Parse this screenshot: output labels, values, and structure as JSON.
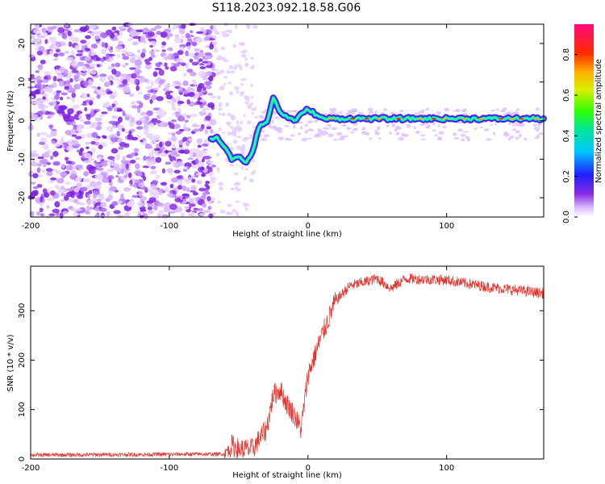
{
  "title": "S118.2023.092.18.58.G06",
  "chart_data": [
    {
      "type": "heatmap",
      "xlabel": "Height of straight line (km)",
      "ylabel": "Frequency (Hz)",
      "xlim": [
        -200,
        170
      ],
      "ylim": [
        -25,
        25
      ],
      "x_ticks": [
        -200,
        -100,
        0,
        100
      ],
      "y_ticks": [
        -20,
        -10,
        0,
        10,
        20
      ],
      "colorbar": {
        "label": "Normalized spectral amplitude",
        "range": [
          0,
          0.95
        ],
        "ticks": [
          0.0,
          0.2,
          0.4,
          0.6,
          0.8
        ],
        "colormap": "rainbow (white-purple-blue-cyan-green-yellow-red-pink)"
      },
      "ridge": [
        {
          "x": -70,
          "y": -4.5
        },
        {
          "x": -65,
          "y": -4.5
        },
        {
          "x": -60,
          "y": -7
        },
        {
          "x": -55,
          "y": -10
        },
        {
          "x": -50,
          "y": -9
        },
        {
          "x": -45,
          "y": -11
        },
        {
          "x": -40,
          "y": -8
        },
        {
          "x": -35,
          "y": -1
        },
        {
          "x": -30,
          "y": -1
        },
        {
          "x": -25,
          "y": 6
        },
        {
          "x": -20,
          "y": 2
        },
        {
          "x": -10,
          "y": 0
        },
        {
          "x": 0,
          "y": 3
        },
        {
          "x": 10,
          "y": 0.5
        },
        {
          "x": 170,
          "y": 0.5
        }
      ]
    },
    {
      "type": "line",
      "xlabel": "Height of straight line (km)",
      "ylabel": "SNR (10 * v/v)",
      "xlim": [
        -200,
        170
      ],
      "ylim": [
        0,
        390
      ],
      "x_ticks": [
        -200,
        -100,
        0,
        100
      ],
      "y_ticks": [
        0,
        100,
        200,
        300
      ],
      "color": "#e8312a",
      "envelope": [
        {
          "x": -200,
          "y": 8
        },
        {
          "x": -60,
          "y": 10
        },
        {
          "x": -55,
          "y": 28
        },
        {
          "x": -50,
          "y": 20
        },
        {
          "x": -40,
          "y": 20
        },
        {
          "x": -30,
          "y": 60
        },
        {
          "x": -25,
          "y": 130
        },
        {
          "x": -20,
          "y": 140
        },
        {
          "x": -15,
          "y": 110
        },
        {
          "x": -10,
          "y": 90
        },
        {
          "x": -5,
          "y": 60
        },
        {
          "x": 0,
          "y": 170
        },
        {
          "x": 10,
          "y": 250
        },
        {
          "x": 20,
          "y": 320
        },
        {
          "x": 30,
          "y": 350
        },
        {
          "x": 50,
          "y": 365
        },
        {
          "x": 60,
          "y": 345
        },
        {
          "x": 70,
          "y": 365
        },
        {
          "x": 100,
          "y": 362
        },
        {
          "x": 130,
          "y": 348
        },
        {
          "x": 170,
          "y": 335
        }
      ]
    }
  ]
}
